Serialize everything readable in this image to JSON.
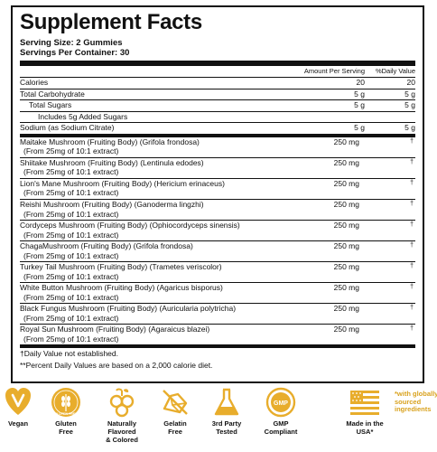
{
  "title": "Supplement Facts",
  "serving_size": "Serving Size: 2 Gummies",
  "servings_per_container": "Servings Per Container: 30",
  "header": {
    "amount": "Amount Per Serving",
    "dv": "%Daily Value"
  },
  "nutrients": [
    {
      "name": "Calories",
      "amount": "20",
      "dv": "20",
      "indent": 0
    },
    {
      "name": "Total Carbohydrate",
      "amount": "5 g",
      "dv": "5 g",
      "indent": 0
    },
    {
      "name": "Total Sugars",
      "amount": "5 g",
      "dv": "5 g",
      "indent": 1
    },
    {
      "name": "Includes 5g Added Sugars",
      "amount": "",
      "dv": "",
      "indent": 2
    },
    {
      "name": "Sodium (as Sodium Citrate)",
      "amount": "5 g",
      "dv": "5 g",
      "indent": 0
    }
  ],
  "mushrooms": [
    {
      "name": "Maitake Mushroom (Fruiting Body) (Grifola frondosa)",
      "sub": "(From 25mg of 10:1 extract)",
      "amount": "250 mg",
      "dv": "†"
    },
    {
      "name": "Shiitake Mushroom (Fruiting Body) (Lentinula edodes)",
      "sub": "(From 25mg of 10:1 extract)",
      "amount": "250 mg",
      "dv": "†"
    },
    {
      "name": "Lion's Mane Mushroom (Fruiting Body) (Hericium erinaceus)",
      "sub": "(From 25mg of 10:1 extract)",
      "amount": "250 mg",
      "dv": "†"
    },
    {
      "name": "Reishi Mushroom (Fruiting Body) (Ganoderma lingzhi)",
      "sub": "(From 25mg of 10:1 extract)",
      "amount": "250 mg",
      "dv": "†"
    },
    {
      "name": "Cordyceps Mushroom (Fruiting Body) (Ophiocordyceps sinensis)",
      "sub": "(From 25mg of 10:1 extract)",
      "amount": "250 mg",
      "dv": "†"
    },
    {
      "name": "ChagaMushroom (Fruiting Body) (Grifola frondosa)",
      "sub": "(From 25mg of 10:1 extract)",
      "amount": "250 mg",
      "dv": "†"
    },
    {
      "name": "Turkey Tail Mushroom (Fruiting Body) (Trametes veriscolor)",
      "sub": "(From 25mg of 10:1 extract)",
      "amount": "250 mg",
      "dv": "†"
    },
    {
      "name": "White Button Mushroom (Fruiting Body) (Agaricus bisporus)",
      "sub": "(From 25mg of 10:1 extract)",
      "amount": "250 mg",
      "dv": "†"
    },
    {
      "name": "Black Fungus Mushroom (Fruiting Body) (Auricularia polytricha)",
      "sub": "(From 25mg of 10:1 extract)",
      "amount": "250 mg",
      "dv": "†"
    },
    {
      "name": "Royal Sun Mushroom (Fruiting Body) (Agaraicus blazei)",
      "sub": "(From 25mg of 10:1 extract)",
      "amount": "250 mg",
      "dv": "†"
    }
  ],
  "footnotes": [
    "†Daily Value not established.",
    "**Percent Daily Values are based on a 2,000 calorie diet."
  ],
  "badges": [
    {
      "label1": "Vegan",
      "label2": "",
      "icon": "vegan-heart-icon"
    },
    {
      "label1": "Gluten",
      "label2": "Free",
      "icon": "gluten-free-icon",
      "seal_text": "GLUTEN FREE"
    },
    {
      "label1": "Naturally Flavored",
      "label2": "& Colored",
      "icon": "berries-icon"
    },
    {
      "label1": "Gelatin",
      "label2": "Free",
      "icon": "gelatin-free-icon"
    },
    {
      "label1": "3rd Party",
      "label2": "Tested",
      "icon": "flask-icon"
    },
    {
      "label1": "GMP",
      "label2": "Compliant",
      "icon": "gmp-seal-icon",
      "seal_text": "GMP"
    },
    {
      "label1": "Made in the",
      "label2": "USA*",
      "icon": "us-flag-icon"
    }
  ],
  "globally_note": "*with globally sourced ingredients",
  "colors": {
    "accent": "#e8ad2c",
    "text": "#111111"
  }
}
